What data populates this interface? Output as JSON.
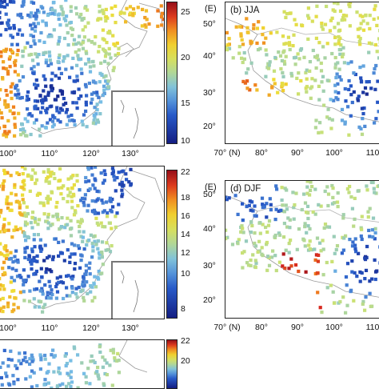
{
  "panels": {
    "a": {
      "colorbar": {
        "ticks": [
          "25",
          "20",
          "15",
          "10"
        ],
        "vmin": 8,
        "vmax": 27
      },
      "xticks": [
        "100°",
        "110°",
        "120°",
        "130°"
      ]
    },
    "b": {
      "label": "(b) JJA",
      "corner": "(E)",
      "yticks": [
        "50°",
        "40°",
        "30°",
        "20°"
      ],
      "xticks": [
        "70° (N)",
        "80°",
        "90°",
        "100°",
        "110"
      ]
    },
    "c": {
      "colorbar": {
        "ticks": [
          "22",
          "18",
          "16",
          "14",
          "12",
          "10",
          "8"
        ],
        "vmin": 7,
        "vmax": 23
      },
      "xticks": [
        "100°",
        "110°",
        "120°",
        "130°"
      ]
    },
    "d": {
      "label": "(d) DJF",
      "corner": "(E)",
      "yticks": [
        "50°",
        "40°",
        "30°",
        "20°"
      ],
      "xticks": [
        "70° (N)",
        "80°",
        "90°",
        "100°",
        "110"
      ]
    },
    "e": {
      "colorbar": {
        "ticks": [
          "22",
          "20"
        ]
      }
    }
  },
  "colors": {
    "low": "#1c2a8c",
    "mid": "#e8e23a",
    "high": "#a0101a",
    "coast": "#9a9a9a",
    "inset_border": "#777777"
  }
}
